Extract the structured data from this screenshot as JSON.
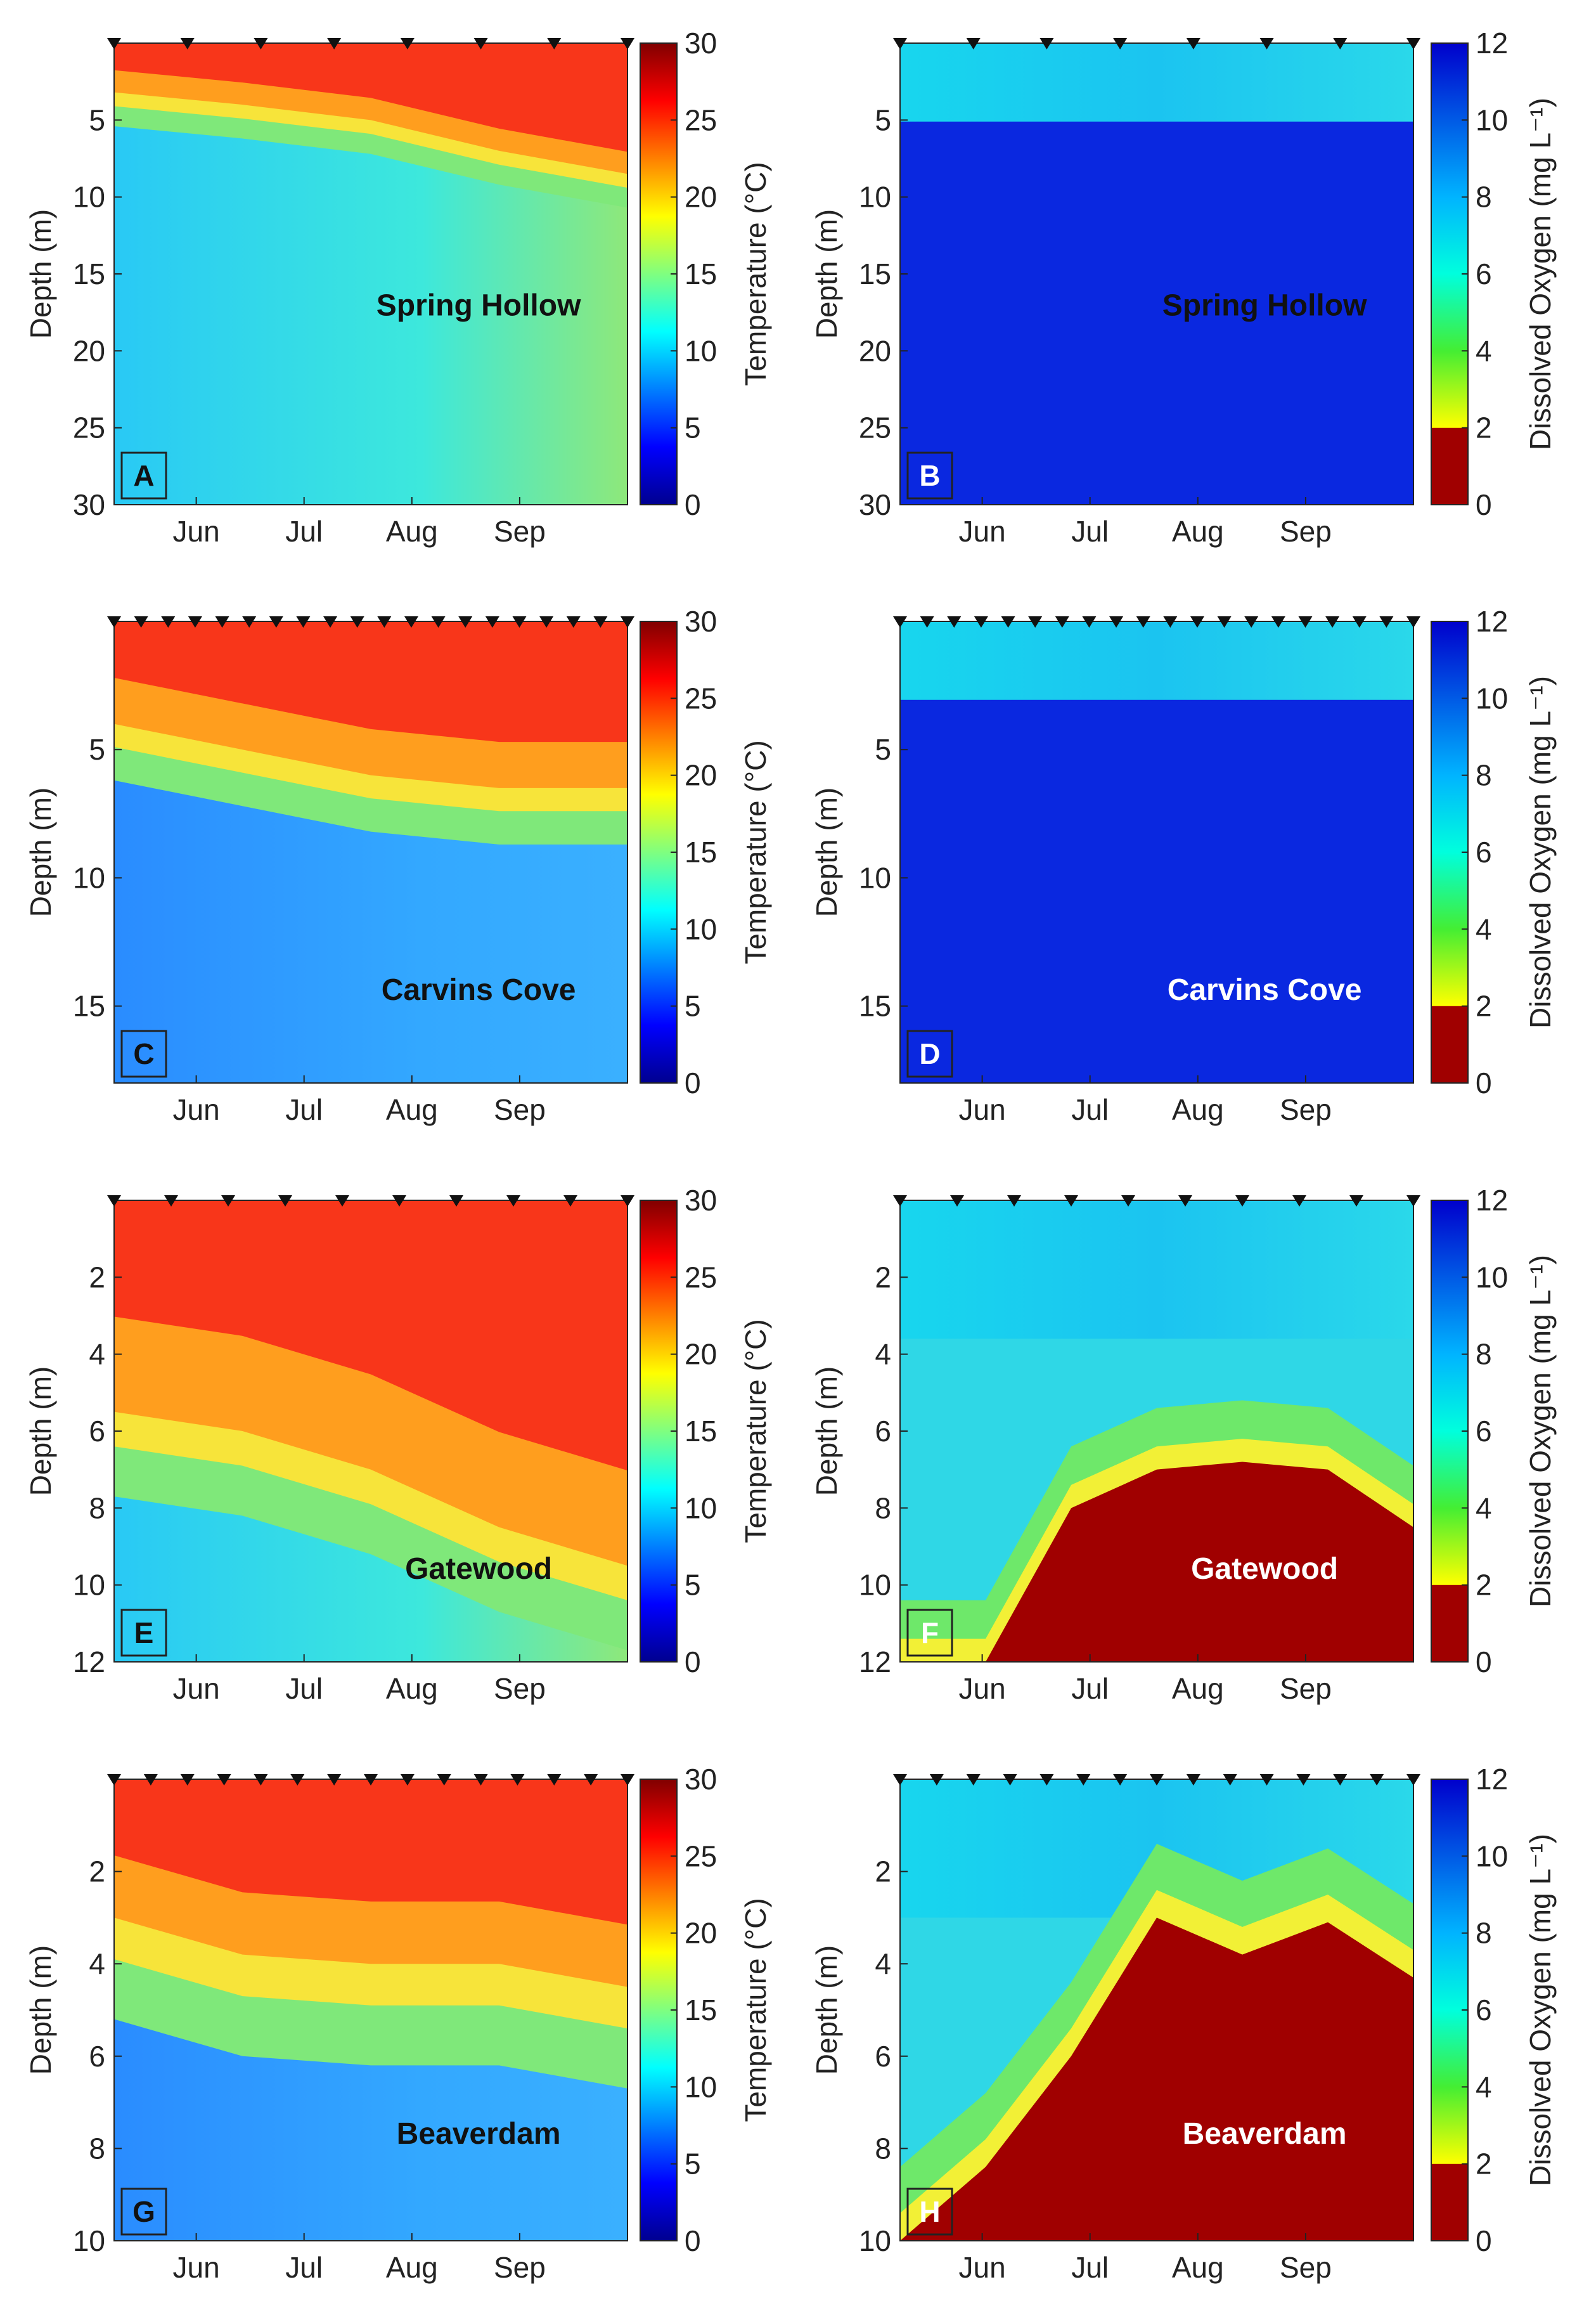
{
  "figure": {
    "months": [
      "Jun",
      "Jul",
      "Aug",
      "Sep"
    ],
    "temperature_colorbar": {
      "label": "Temperature (°C)",
      "ticks": [
        "30",
        "25",
        "20",
        "15",
        "10",
        "5",
        "0"
      ],
      "min": 0,
      "max": 30
    },
    "oxygen_colorbar": {
      "label": "Dissolved Oxygen (mg L⁻¹)",
      "ticks": [
        "12",
        "10",
        "8",
        "6",
        "4",
        "2",
        "0"
      ],
      "min": 0,
      "max": 12
    },
    "depth_label": "Depth (m)"
  },
  "chart_data": [
    {
      "panel": "A",
      "type": "heatmap",
      "variable": "temperature",
      "site": "Spring Hollow",
      "ylabel": "Depth (m)",
      "ylim": [
        30,
        0
      ],
      "yticks": [
        5,
        10,
        15,
        20,
        25,
        30
      ],
      "xticks": [
        "Jun",
        "Jul",
        "Aug",
        "Sep"
      ],
      "colorbar": "Temperature (°C)",
      "thermocline_depth_m": [
        3.2,
        4.0,
        5.0,
        7.0,
        8.5
      ],
      "surface_temp_c": 27,
      "bottom_temp_c": 11,
      "sampling_dates": 8
    },
    {
      "panel": "B",
      "type": "heatmap",
      "variable": "dissolved_oxygen",
      "site": "Spring Hollow",
      "ylabel": "Depth (m)",
      "ylim": [
        30,
        0
      ],
      "yticks": [
        5,
        10,
        15,
        20,
        25,
        30
      ],
      "xticks": [
        "Jun",
        "Jul",
        "Aug",
        "Sep"
      ],
      "colorbar": "Dissolved Oxygen (mg L⁻¹)",
      "surface_do_mg_l": 8,
      "hypolimnion_do_mg_l": 10.5,
      "sampling_dates": 8
    },
    {
      "panel": "C",
      "type": "heatmap",
      "variable": "temperature",
      "site": "Carvins Cove",
      "ylabel": "Depth (m)",
      "ylim": [
        18,
        0
      ],
      "yticks": [
        5,
        10,
        15
      ],
      "xticks": [
        "Jun",
        "Jul",
        "Aug",
        "Sep"
      ],
      "colorbar": "Temperature (°C)",
      "thermocline_depth_m": [
        4.0,
        5.0,
        6.0,
        6.5,
        6.5
      ],
      "surface_temp_c": 27,
      "bottom_temp_c": 9,
      "sampling_dates": 20
    },
    {
      "panel": "D",
      "type": "heatmap",
      "variable": "dissolved_oxygen",
      "site": "Carvins Cove",
      "ylabel": "Depth (m)",
      "ylim": [
        18,
        0
      ],
      "yticks": [
        5,
        10,
        15
      ],
      "xticks": [
        "Jun",
        "Jul",
        "Aug",
        "Sep"
      ],
      "colorbar": "Dissolved Oxygen (mg L⁻¹)",
      "surface_do_mg_l": 8,
      "hypolimnion_do_mg_l": 11,
      "sampling_dates": 20
    },
    {
      "panel": "E",
      "type": "heatmap",
      "variable": "temperature",
      "site": "Gatewood",
      "ylabel": "Depth (m)",
      "ylim": [
        12,
        0
      ],
      "yticks": [
        2,
        4,
        6,
        8,
        10,
        12
      ],
      "xticks": [
        "Jun",
        "Jul",
        "Aug",
        "Sep"
      ],
      "colorbar": "Temperature (°C)",
      "thermocline_depth_m": [
        5.5,
        6.0,
        7.0,
        8.5,
        9.5
      ],
      "surface_temp_c": 27,
      "bottom_temp_c": 13,
      "sampling_dates": 10
    },
    {
      "panel": "F",
      "type": "heatmap",
      "variable": "dissolved_oxygen",
      "site": "Gatewood",
      "ylabel": "Depth (m)",
      "ylim": [
        12,
        0
      ],
      "yticks": [
        2,
        4,
        6,
        8,
        10,
        12
      ],
      "xticks": [
        "Jun",
        "Jul",
        "Aug",
        "Sep"
      ],
      "colorbar": "Dissolved Oxygen (mg L⁻¹)",
      "anoxic_top_depth_m": [
        12,
        12,
        8.0,
        7.0,
        6.8,
        7.0,
        8.5
      ],
      "surface_do_mg_l": 8,
      "sampling_dates": 10
    },
    {
      "panel": "G",
      "type": "heatmap",
      "variable": "temperature",
      "site": "Beaverdam",
      "ylabel": "Depth (m)",
      "ylim": [
        10,
        0
      ],
      "yticks": [
        2,
        4,
        6,
        8,
        10
      ],
      "xticks": [
        "Jun",
        "Jul",
        "Aug",
        "Sep"
      ],
      "colorbar": "Temperature (°C)",
      "thermocline_depth_m": [
        3.0,
        3.8,
        4.0,
        4.0,
        4.5
      ],
      "surface_temp_c": 27,
      "bottom_temp_c": 8,
      "sampling_dates": 15
    },
    {
      "panel": "H",
      "type": "heatmap",
      "variable": "dissolved_oxygen",
      "site": "Beaverdam",
      "ylabel": "Depth (m)",
      "ylim": [
        10,
        0
      ],
      "yticks": [
        2,
        4,
        6,
        8,
        10
      ],
      "xticks": [
        "Jun",
        "Jul",
        "Aug",
        "Sep"
      ],
      "colorbar": "Dissolved Oxygen (mg L⁻¹)",
      "anoxic_top_depth_m": [
        10,
        8.4,
        6.0,
        3.0,
        3.8,
        3.1,
        4.3
      ],
      "surface_do_mg_l": 8,
      "sampling_dates": 15
    }
  ]
}
